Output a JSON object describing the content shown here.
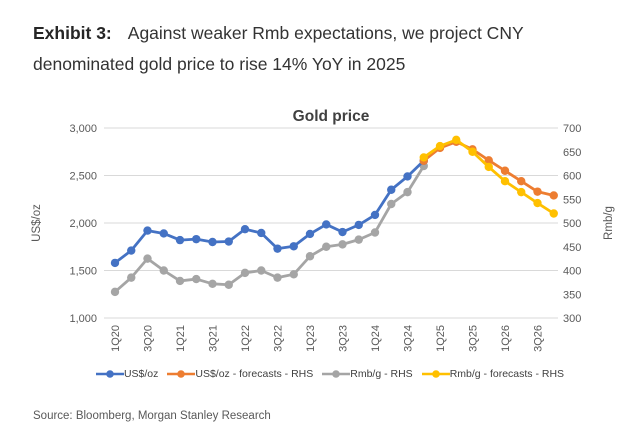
{
  "heading": {
    "label": "Exhibit 3:",
    "line1": "Against weaker Rmb expectations, we project CNY",
    "line2": "denominated gold price to rise 14% YoY in 2025"
  },
  "source": "Source: Bloomberg, Morgan Stanley Research",
  "chart_data": {
    "type": "line",
    "title": "Gold price",
    "grid": true,
    "legend_position": "bottom",
    "categories": [
      "1Q20",
      "2Q20",
      "3Q20",
      "4Q20",
      "1Q21",
      "2Q21",
      "3Q21",
      "4Q21",
      "1Q22",
      "2Q22",
      "3Q22",
      "4Q22",
      "1Q23",
      "2Q23",
      "3Q23",
      "4Q23",
      "1Q24",
      "2Q24",
      "3Q24",
      "4Q24",
      "1Q25",
      "2Q25",
      "3Q25",
      "4Q25",
      "1Q26",
      "2Q26",
      "3Q26",
      "4Q26"
    ],
    "x_tick_labels": [
      "1Q20",
      "3Q20",
      "1Q21",
      "3Q21",
      "1Q22",
      "3Q22",
      "1Q23",
      "3Q23",
      "1Q24",
      "3Q24",
      "1Q25",
      "3Q25",
      "1Q26",
      "3Q26"
    ],
    "lhs_axis": {
      "label": "US$/oz",
      "min": 1000,
      "max": 3000,
      "ticks": [
        3000,
        2500,
        2000,
        1500,
        1000
      ]
    },
    "rhs_axis": {
      "label": "Rmb/g",
      "min": 300,
      "max": 700,
      "ticks": [
        700,
        650,
        600,
        550,
        500,
        450,
        400,
        350,
        300
      ]
    },
    "gridline_color": "#d9d9d9",
    "tick_color": "#595959",
    "title_color": "#404040",
    "series": [
      {
        "name": "US$/oz",
        "color": "#4472C4",
        "axis": "LHS",
        "start_index": 0,
        "values": [
          1580,
          1710,
          1920,
          1890,
          1820,
          1830,
          1800,
          1805,
          1935,
          1895,
          1730,
          1755,
          1885,
          1985,
          1905,
          1980,
          2085,
          2350,
          2490,
          2655
        ]
      },
      {
        "name": "US$/oz - forecasts - RHS",
        "color": "#ED7D31",
        "axis": "LHS",
        "start_index": 19,
        "values": [
          2655,
          2790,
          2855,
          2775,
          2660,
          2550,
          2440,
          2330,
          2290
        ]
      },
      {
        "name": "Rmb/g - RHS",
        "color": "#A5A5A5",
        "axis": "RHS",
        "start_index": 0,
        "values": [
          355,
          385,
          425,
          400,
          378,
          382,
          372,
          370,
          395,
          400,
          385,
          392,
          430,
          450,
          455,
          465,
          480,
          540,
          565,
          620
        ]
      },
      {
        "name": "Rmb/g - forecasts - RHS",
        "color": "#FFC000",
        "axis": "RHS",
        "start_index": 19,
        "values": [
          638,
          662,
          675,
          650,
          618,
          588,
          565,
          542,
          520
        ]
      }
    ],
    "draw_order": [
      2,
      0,
      1,
      3
    ]
  }
}
